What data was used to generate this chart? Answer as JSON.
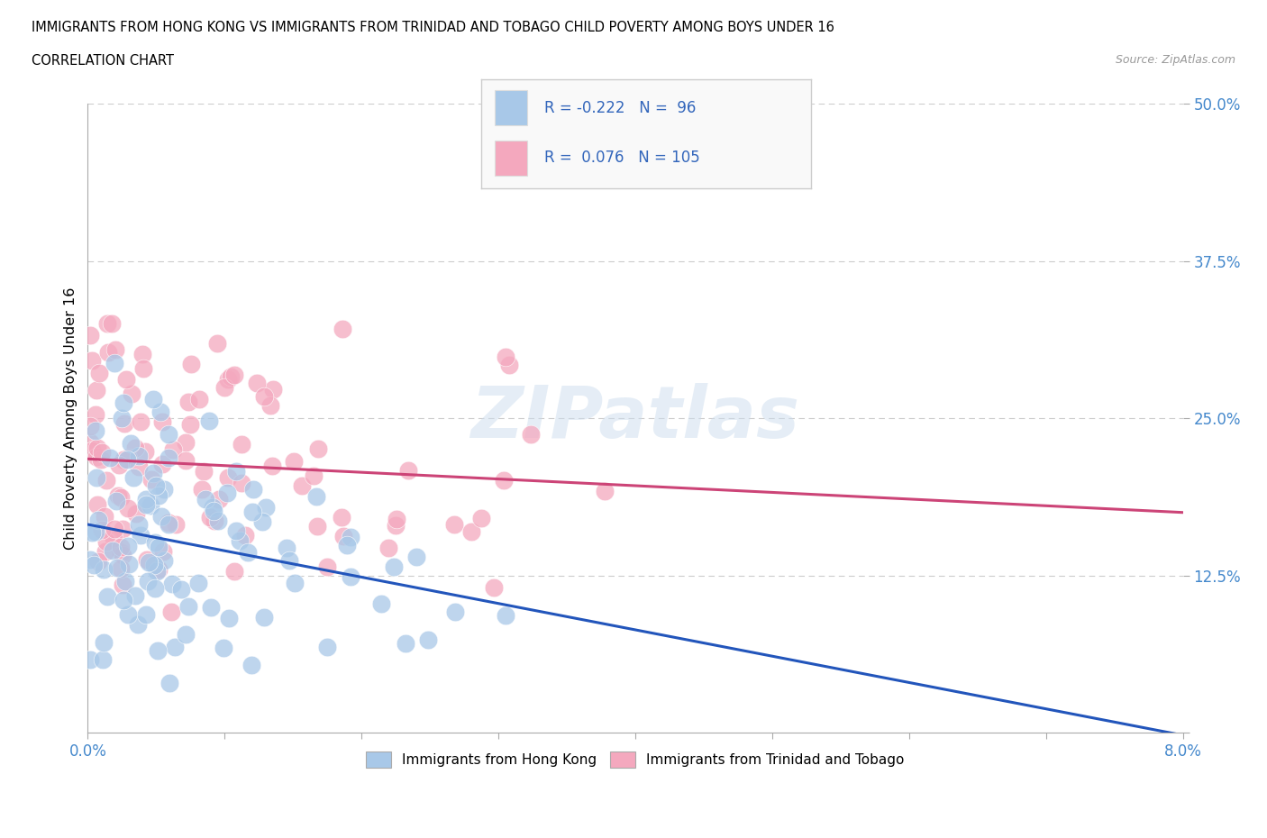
{
  "title_line1": "IMMIGRANTS FROM HONG KONG VS IMMIGRANTS FROM TRINIDAD AND TOBAGO CHILD POVERTY AMONG BOYS UNDER 16",
  "title_line2": "CORRELATION CHART",
  "source_text": "Source: ZipAtlas.com",
  "ylabel": "Child Poverty Among Boys Under 16",
  "x_min": 0.0,
  "x_max": 0.08,
  "y_min": 0.0,
  "y_max": 0.5,
  "x_ticks": [
    0.0,
    0.01,
    0.02,
    0.03,
    0.04,
    0.05,
    0.06,
    0.07,
    0.08
  ],
  "x_tick_labels": [
    "0.0%",
    "",
    "",
    "",
    "",
    "",
    "",
    "",
    "8.0%"
  ],
  "y_ticks": [
    0.0,
    0.125,
    0.25,
    0.375,
    0.5
  ],
  "y_tick_labels": [
    "",
    "12.5%",
    "25.0%",
    "37.5%",
    "50.0%"
  ],
  "hk_color": "#a8c8e8",
  "tt_color": "#f4a8be",
  "hk_line_color": "#2255bb",
  "tt_line_color": "#cc4477",
  "hk_R": -0.222,
  "hk_N": 96,
  "tt_R": 0.076,
  "tt_N": 105,
  "watermark": "ZIPatlas",
  "grid_color": "#cccccc",
  "background_color": "#ffffff",
  "tick_label_color": "#4488cc",
  "legend_label_color": "#3366bb"
}
